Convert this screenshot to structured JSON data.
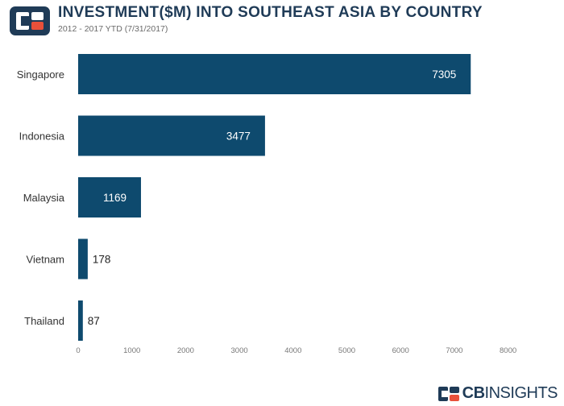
{
  "header": {
    "title": "INVESTMENT($M) INTO SOUTHEAST ASIA BY COUNTRY",
    "subtitle": "2012 - 2017 YTD (7/31/2017)"
  },
  "footer": {
    "brand_bold": "CB",
    "brand_rest": "INSIGHTS"
  },
  "colors": {
    "bar": "#0e4a6e",
    "logo_primary": "#1f3b57",
    "logo_accent": "#e8503a",
    "value_inside": "#ffffff",
    "value_outside": "#222222"
  },
  "chart_data": {
    "type": "bar",
    "orientation": "horizontal",
    "categories": [
      "Singapore",
      "Indonesia",
      "Malaysia",
      "Vietnam",
      "Thailand"
    ],
    "values": [
      7305,
      3477,
      1169,
      178,
      87
    ],
    "xlim": [
      0,
      8000
    ],
    "xticks": [
      0,
      1000,
      2000,
      3000,
      4000,
      5000,
      6000,
      7000,
      8000
    ],
    "grid": false,
    "data_labels": true
  }
}
